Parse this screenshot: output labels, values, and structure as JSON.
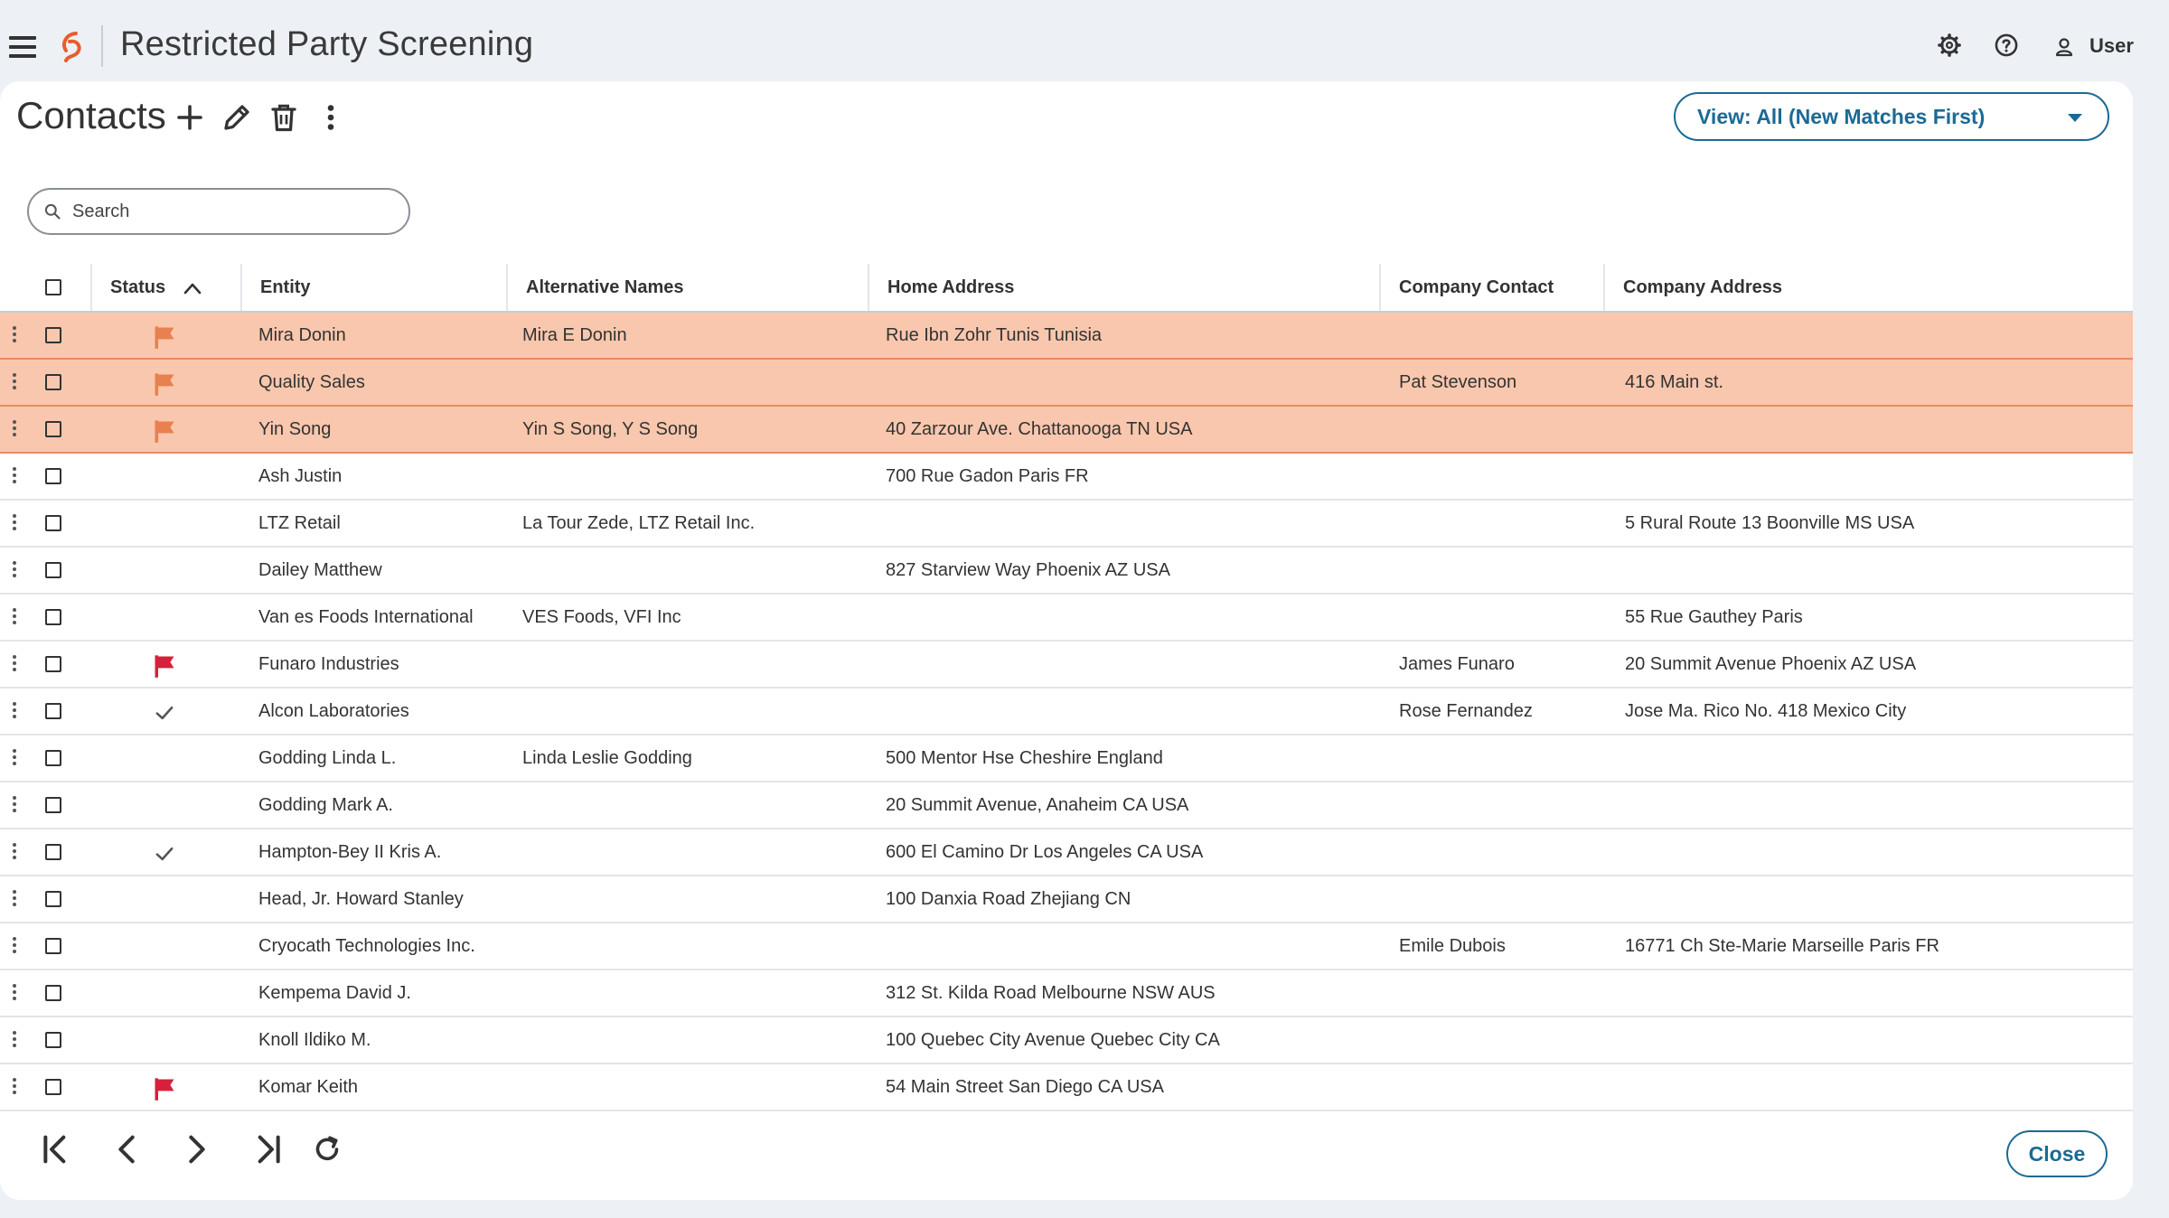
{
  "app": {
    "title": "Restricted Party Screening",
    "user_label": "User"
  },
  "page": {
    "title": "Contacts"
  },
  "view_select": {
    "label": "View: All (New Matches First)"
  },
  "search": {
    "placeholder": "Search"
  },
  "colors": {
    "accent": "#1b6a94",
    "match_row": "#f9c7ad",
    "flag_orange": "#e8804f",
    "flag_red": "#d81f3c"
  },
  "table": {
    "headers": {
      "status": "Status",
      "entity": "Entity",
      "alternative_names": "Alternative Names",
      "home_address": "Home Address",
      "company_contact": "Company Contact",
      "company_address": "Company Address"
    },
    "rows": [
      {
        "status": "flag-orange",
        "highlight": true,
        "entity": "Mira Donin",
        "alt": "Mira E Donin",
        "home": "Rue Ibn Zohr Tunis Tunisia",
        "contact": "",
        "company": ""
      },
      {
        "status": "flag-orange",
        "highlight": true,
        "entity": "Quality Sales",
        "alt": "",
        "home": "",
        "contact": "Pat Stevenson",
        "company": "416 Main st."
      },
      {
        "status": "flag-orange",
        "highlight": true,
        "entity": "Yin Song",
        "alt": "Yin S Song, Y S Song",
        "home": "40 Zarzour Ave. Chattanooga TN USA",
        "contact": "",
        "company": ""
      },
      {
        "status": "none",
        "highlight": false,
        "entity": "Ash Justin",
        "alt": "",
        "home": "700 Rue Gadon Paris FR",
        "contact": "",
        "company": ""
      },
      {
        "status": "none",
        "highlight": false,
        "entity": "LTZ Retail",
        "alt": "La Tour Zede, LTZ Retail Inc.",
        "home": "",
        "contact": "",
        "company": "5 Rural Route 13 Boonville MS USA"
      },
      {
        "status": "none",
        "highlight": false,
        "entity": "Dailey Matthew",
        "alt": "",
        "home": "827 Starview Way Phoenix AZ USA",
        "contact": "",
        "company": ""
      },
      {
        "status": "none",
        "highlight": false,
        "entity": "Van es Foods International",
        "alt": "VES Foods, VFI Inc",
        "home": "",
        "contact": "",
        "company": "55 Rue Gauthey Paris"
      },
      {
        "status": "flag-red",
        "highlight": false,
        "entity": "Funaro Industries",
        "alt": "",
        "home": "",
        "contact": "James Funaro",
        "company": "20 Summit Avenue Phoenix AZ USA"
      },
      {
        "status": "check",
        "highlight": false,
        "entity": "Alcon Laboratories",
        "alt": "",
        "home": "",
        "contact": "Rose Fernandez",
        "company": "Jose Ma. Rico No. 418 Mexico City"
      },
      {
        "status": "none",
        "highlight": false,
        "entity": "Godding Linda L.",
        "alt": "Linda Leslie Godding",
        "home": "500 Mentor Hse Cheshire England",
        "contact": "",
        "company": ""
      },
      {
        "status": "none",
        "highlight": false,
        "entity": "Godding Mark A.",
        "alt": "",
        "home": "20 Summit Avenue, Anaheim CA USA",
        "contact": "",
        "company": ""
      },
      {
        "status": "check",
        "highlight": false,
        "entity": "Hampton-Bey II Kris A.",
        "alt": "",
        "home": "600 El Camino Dr Los Angeles CA USA",
        "contact": "",
        "company": ""
      },
      {
        "status": "none",
        "highlight": false,
        "entity": "Head, Jr. Howard Stanley",
        "alt": "",
        "home": "100 Danxia Road Zhejiang CN",
        "contact": "",
        "company": ""
      },
      {
        "status": "none",
        "highlight": false,
        "entity": "Cryocath Technologies Inc.",
        "alt": "",
        "home": "",
        "contact": "Emile Dubois",
        "company": "16771 Ch Ste-Marie Marseille Paris FR"
      },
      {
        "status": "none",
        "highlight": false,
        "entity": "Kempema David J.",
        "alt": "",
        "home": "312 St. Kilda Road Melbourne NSW AUS",
        "contact": "",
        "company": ""
      },
      {
        "status": "none",
        "highlight": false,
        "entity": "Knoll Ildiko M.",
        "alt": "",
        "home": "100 Quebec City Avenue Quebec City CA",
        "contact": "",
        "company": ""
      },
      {
        "status": "flag-red",
        "highlight": false,
        "entity": "Komar Keith",
        "alt": "",
        "home": "54 Main Street San Diego CA USA",
        "contact": "",
        "company": ""
      }
    ]
  },
  "footer": {
    "close_label": "Close"
  }
}
